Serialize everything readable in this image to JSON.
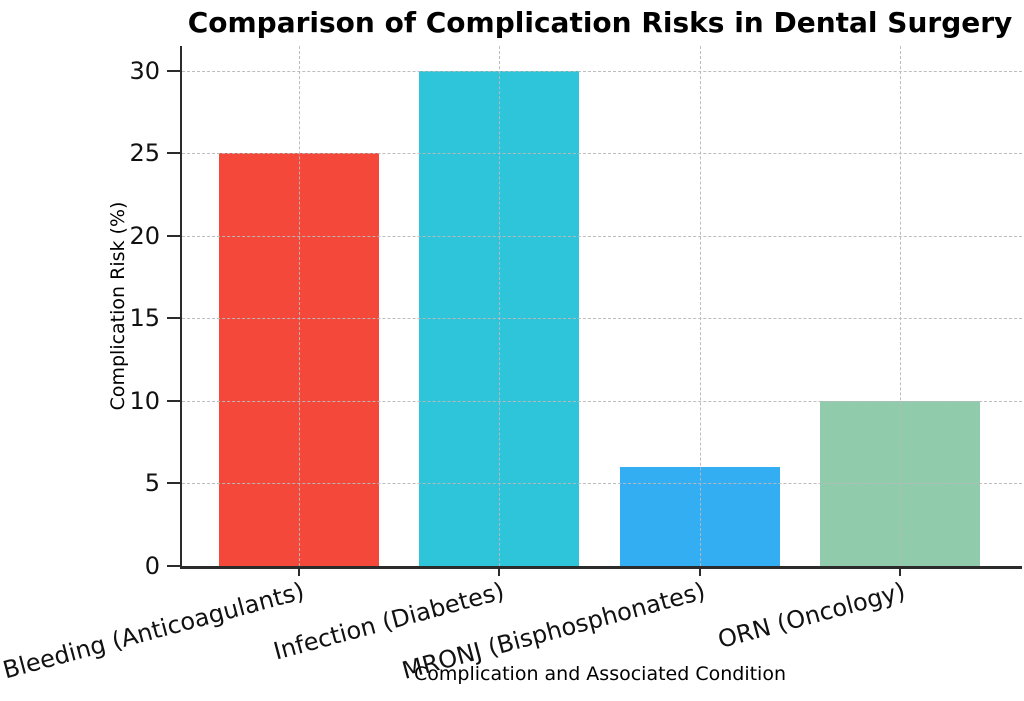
{
  "chart_data": {
    "type": "bar",
    "title": "Comparison of Complication Risks in Dental Surgery",
    "xlabel": "Complication and Associated Condition",
    "ylabel": "Complication Risk (%)",
    "categories": [
      "Bleeding (Anticoagulants)",
      "Infection (Diabetes)",
      "MRONJ (Bisphosphonates)",
      "ORN (Oncology)"
    ],
    "values": [
      25,
      30,
      6,
      10
    ],
    "bar_colors": [
      "#f4483a",
      "#2ec4d9",
      "#33aef3",
      "#90cbac"
    ],
    "yticks": [
      0,
      5,
      10,
      15,
      20,
      25,
      30
    ],
    "ylim": [
      0,
      31.5
    ],
    "grid": "dashed-both-axes-drawn-above-bars",
    "legend": "none",
    "x_tick_label_rotation_deg": -15
  },
  "colors": {
    "axis": "#2b2b2b",
    "grid": "#b9b9b9",
    "background": "#ffffff",
    "text": "#000000"
  }
}
